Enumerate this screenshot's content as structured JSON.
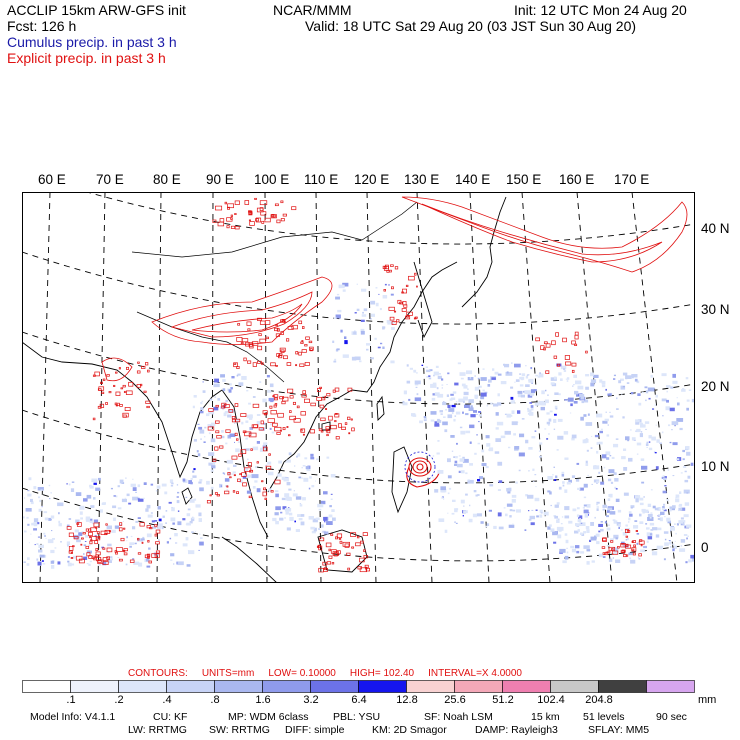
{
  "header": {
    "model": "ACCLIP 15km ARW-GFS init",
    "forecast": "Fcst:  126 h",
    "agency": "NCAR/MMM",
    "init": "Init: 12 UTC Mon 24 Aug 20",
    "valid": "Valid: 18 UTC Sat 29 Aug 20 (03 JST Sun 30 Aug 20)",
    "legend_cumulus": "Cumulus precip. in past 3 h",
    "legend_explicit": "Explicit precip. in past 3 h"
  },
  "axes": {
    "longitude_labels": [
      "60 E",
      "70 E",
      "80 E",
      "90 E",
      "100 E",
      "110 E",
      "120 E",
      "130 E",
      "140 E",
      "150 E",
      "160 E",
      "170 E"
    ],
    "latitude_labels": [
      "40 N",
      "30 N",
      "20 N",
      "10 N",
      "0"
    ]
  },
  "contours": {
    "title": "CONTOURS:",
    "units": "UNITS=mm",
    "low": "LOW= 0.10000",
    "high": "HIGH=  102.40",
    "interval": "INTERVAL=X  4.0000"
  },
  "colorbar": {
    "ticks": [
      ".1",
      ".2",
      ".4",
      ".8",
      "1.6",
      "3.2",
      "6.4",
      "12.8",
      "25.6",
      "51.2",
      "102.4",
      "204.8"
    ],
    "units": "mm",
    "colors": [
      "#ffffff",
      "#eef2fc",
      "#dde6fa",
      "#c7d3f6",
      "#aab8f0",
      "#8f9bec",
      "#6c72e8",
      "#1515ee",
      "#f8d2d2",
      "#f4a8b8",
      "#ef7fb0",
      "#c8c8c8",
      "#404040",
      "#d7a6ef"
    ]
  },
  "map_colors": {
    "explicit": "#e01010",
    "cumulus": "#1818d8",
    "coast": "#000000"
  },
  "footer": {
    "line1": {
      "model_info": "Model Info: V4.1.1",
      "cu": "CU: KF",
      "mp": "MP: WDM 6class",
      "pbl": "PBL: YSU",
      "sf": "SF: Noah LSM",
      "res": "15 km",
      "levels": "51 levels",
      "dt": "90 sec"
    },
    "line2": {
      "lw": "LW: RRTMG",
      "sw": "SW: RRTMG",
      "diff": "DIFF: simple",
      "km": "KM: 2D Smagor",
      "damp": "DAMP: Rayleigh3",
      "sflay": "SFLAY: MM5"
    }
  }
}
